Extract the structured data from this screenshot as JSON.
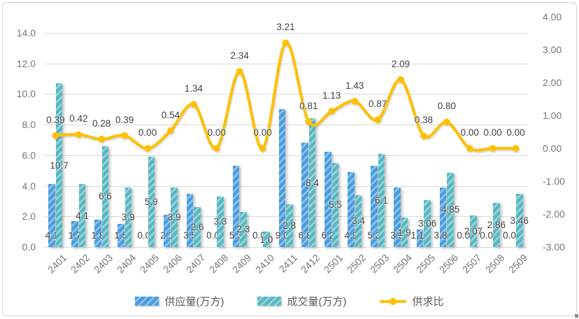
{
  "chart_data": {
    "type": "combo-bar-line",
    "categories": [
      "2401",
      "2402",
      "2403",
      "2404",
      "2405",
      "2406",
      "2407",
      "2408",
      "2409",
      "2410",
      "2411",
      "2412",
      "2501",
      "2502",
      "2503",
      "2504",
      "2505",
      "2506",
      "2507",
      "2508",
      "2509"
    ],
    "series": [
      {
        "name": "供应量(万方)",
        "type": "bar",
        "axis": "left",
        "color": "#4a9cdf",
        "stripe_color": "#8fc5ee",
        "values": [
          4.1,
          1.7,
          1.8,
          1.5,
          0.0,
          2.1,
          3.5,
          0.0,
          5.3,
          0.0,
          9.0,
          6.8,
          6.2,
          4.9,
          5.3,
          3.9,
          1.15,
          3.87,
          0.0,
          0.0,
          0.0
        ],
        "labels": [
          "4.1",
          "1.7",
          "1.8",
          "1.5",
          "0.0",
          "2.1",
          "3.5",
          "0.0",
          "5.3",
          "0.0",
          "9.0",
          "6.8",
          "6.2",
          "4.9",
          "5.3",
          "3.9",
          "1.15",
          "3.87",
          "0.00",
          "0.00",
          "0.00"
        ],
        "label_position": "inside-base"
      },
      {
        "name": "成交量(万方)",
        "type": "bar",
        "axis": "left",
        "color": "#57b7c1",
        "stripe_color": "#9bd6dc",
        "values": [
          10.7,
          4.1,
          6.6,
          3.9,
          5.9,
          3.9,
          2.6,
          3.3,
          2.3,
          1.0,
          2.8,
          8.4,
          5.5,
          3.4,
          6.1,
          1.9,
          3.06,
          4.85,
          2.07,
          2.86,
          3.46
        ],
        "labels": [
          "10.7",
          "4.1",
          "6.6",
          "3.9",
          "5.9",
          "3.9",
          "2.6",
          "3.3",
          "2.3",
          "1.0",
          "2.8",
          "8.4",
          "5.5",
          "3.4",
          "6.1",
          "1.9",
          "3.06",
          "4.85",
          "2.07",
          "2.86",
          "3.46"
        ],
        "label_position": "inside-center"
      },
      {
        "name": "供求比",
        "type": "line",
        "axis": "right",
        "color": "#ffc000",
        "smooth": true,
        "values": [
          0.39,
          0.42,
          0.28,
          0.39,
          0.0,
          0.54,
          1.34,
          0.0,
          2.34,
          0.0,
          3.21,
          0.81,
          1.13,
          1.43,
          0.87,
          2.09,
          0.38,
          0.8,
          0.0,
          0.0,
          0.0
        ],
        "labels": [
          "0.39",
          "0.42",
          "0.28",
          "0.39",
          "0.00",
          "0.54",
          "1.34",
          "0.00",
          "2.34",
          "0.00",
          "3.21",
          "0.81",
          "1.13",
          "1.43",
          "0.87",
          "2.09",
          "0.38",
          "0.80",
          "0.00",
          "0.00",
          "0.00"
        ],
        "label_position": "above"
      }
    ],
    "left_axis": {
      "min": 0,
      "max": 14,
      "step": 2,
      "labels_top_to_bottom": [
        "14.0",
        "12.0",
        "10.0",
        "8.0",
        "6.0",
        "4.0",
        "2.0",
        "0.0"
      ]
    },
    "right_axis": {
      "min": -3,
      "max": 4,
      "step": 1,
      "labels_top_to_bottom": [
        "4.00",
        "3.00",
        "2.00",
        "1.00",
        "0.00",
        "-1.00",
        "-2.00",
        "-3.00"
      ]
    },
    "grid": "horizontal",
    "legend_position": "bottom",
    "colors": {
      "gridline": "#d9d9d9",
      "tick_text": "#757575",
      "data_label": "#404040",
      "legend_text": "#595959",
      "line": "#ffc000"
    }
  }
}
